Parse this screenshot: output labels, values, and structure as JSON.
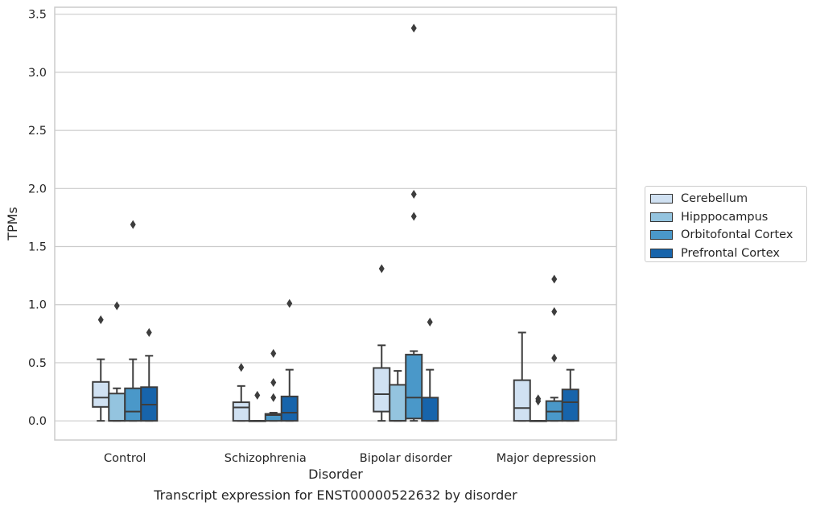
{
  "chart_data": {
    "type": "box",
    "xlabel": "Disorder",
    "ylabel": "TPMs",
    "ylim": [
      -0.165,
      3.56
    ],
    "yticks": [
      0.0,
      0.5,
      1.0,
      1.5,
      2.0,
      2.5,
      3.0,
      3.5
    ],
    "ytick_labels": [
      "0.0",
      "0.5",
      "1.0",
      "1.5",
      "2.0",
      "2.5",
      "3.0",
      "3.5"
    ],
    "grid": "horizontal",
    "legend_position": "right, outside",
    "categories": [
      "Control",
      "Schizophrenia",
      "Bipolar disorder",
      "Major depression"
    ],
    "series": [
      {
        "name": "Cerebellum",
        "color": "#d0e1f2",
        "boxes": [
          {
            "whislo": 0.0,
            "q1": 0.12,
            "med": 0.2,
            "q3": 0.335,
            "whishi": 0.53,
            "fliers": [
              0.87
            ]
          },
          {
            "whislo": 0.0,
            "q1": 0.0,
            "med": 0.115,
            "q3": 0.16,
            "whishi": 0.3,
            "fliers": [
              0.46
            ]
          },
          {
            "whislo": 0.0,
            "q1": 0.08,
            "med": 0.23,
            "q3": 0.455,
            "whishi": 0.65,
            "fliers": [
              1.31
            ]
          },
          {
            "whislo": 0.0,
            "q1": 0.0,
            "med": 0.11,
            "q3": 0.35,
            "whishi": 0.76,
            "fliers": []
          }
        ]
      },
      {
        "name": "Hipppocampus",
        "color": "#94c4df",
        "boxes": [
          {
            "whislo": 0.0,
            "q1": 0.0,
            "med": 0.0,
            "q3": 0.235,
            "whishi": 0.28,
            "fliers": [
              0.99
            ]
          },
          {
            "whislo": 0.0,
            "q1": 0.0,
            "med": 0.0,
            "q3": 0.0,
            "whishi": 0.0,
            "fliers": [
              0.22
            ]
          },
          {
            "whislo": 0.0,
            "q1": 0.0,
            "med": 0.0,
            "q3": 0.31,
            "whishi": 0.43,
            "fliers": []
          },
          {
            "whislo": 0.0,
            "q1": 0.0,
            "med": 0.0,
            "q3": 0.0,
            "whishi": 0.0,
            "fliers": [
              0.17,
              0.19
            ]
          }
        ]
      },
      {
        "name": "Orbitofontal Cortex",
        "color": "#4a98c9",
        "boxes": [
          {
            "whislo": 0.0,
            "q1": 0.0,
            "med": 0.08,
            "q3": 0.28,
            "whishi": 0.53,
            "fliers": [
              1.69
            ]
          },
          {
            "whislo": 0.0,
            "q1": 0.0,
            "med": 0.05,
            "q3": 0.06,
            "whishi": 0.07,
            "fliers": [
              0.2,
              0.33,
              0.58
            ]
          },
          {
            "whislo": 0.0,
            "q1": 0.02,
            "med": 0.2,
            "q3": 0.57,
            "whishi": 0.6,
            "fliers": [
              1.76,
              1.95,
              3.38
            ]
          },
          {
            "whislo": 0.0,
            "q1": 0.0,
            "med": 0.08,
            "q3": 0.17,
            "whishi": 0.2,
            "fliers": [
              0.54,
              0.94,
              1.22
            ]
          }
        ]
      },
      {
        "name": "Prefrontal Cortex",
        "color": "#1764ab",
        "boxes": [
          {
            "whislo": 0.0,
            "q1": 0.0,
            "med": 0.14,
            "q3": 0.29,
            "whishi": 0.56,
            "fliers": [
              0.76
            ]
          },
          {
            "whislo": 0.0,
            "q1": 0.0,
            "med": 0.07,
            "q3": 0.21,
            "whishi": 0.44,
            "fliers": [
              1.01
            ]
          },
          {
            "whislo": 0.0,
            "q1": 0.0,
            "med": 0.0,
            "q3": 0.2,
            "whishi": 0.44,
            "fliers": [
              0.85
            ]
          },
          {
            "whislo": 0.0,
            "q1": 0.0,
            "med": 0.16,
            "q3": 0.27,
            "whishi": 0.44,
            "fliers": []
          }
        ]
      }
    ]
  },
  "caption": "Transcript expression for ENST00000522632 by disorder"
}
